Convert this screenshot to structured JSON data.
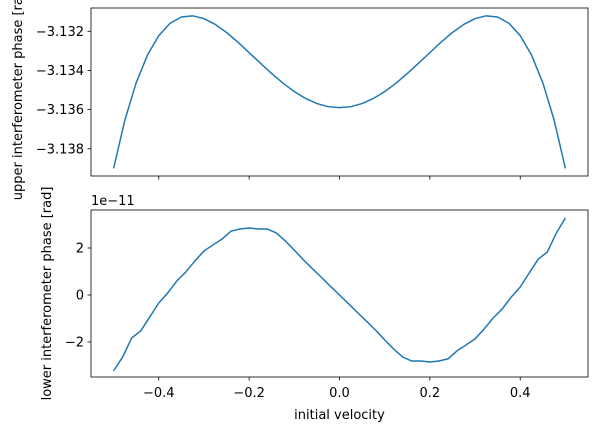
{
  "chart_data": [
    {
      "type": "line",
      "y_label": "upper interferometer phase [rad]",
      "color": "#1f77b4",
      "x": [
        -0.5,
        -0.475,
        -0.45,
        -0.425,
        -0.4,
        -0.375,
        -0.35,
        -0.325,
        -0.3,
        -0.275,
        -0.25,
        -0.225,
        -0.2,
        -0.175,
        -0.15,
        -0.125,
        -0.1,
        -0.075,
        -0.05,
        -0.025,
        0,
        0.025,
        0.05,
        0.075,
        0.1,
        0.125,
        0.15,
        0.175,
        0.2,
        0.225,
        0.25,
        0.275,
        0.3,
        0.325,
        0.35,
        0.375,
        0.4,
        0.425,
        0.45,
        0.475,
        0.5
      ],
      "values": [
        -3.139,
        -3.13653,
        -3.13463,
        -3.13321,
        -3.13222,
        -3.13159,
        -3.13127,
        -3.13121,
        -3.13135,
        -3.13165,
        -3.13206,
        -3.13255,
        -3.13309,
        -3.13363,
        -3.13416,
        -3.13465,
        -3.13508,
        -3.13543,
        -3.13569,
        -3.13585,
        -3.1359,
        -3.13585,
        -3.13569,
        -3.13543,
        -3.13508,
        -3.13465,
        -3.13416,
        -3.13363,
        -3.13309,
        -3.13255,
        -3.13206,
        -3.13165,
        -3.13135,
        -3.13121,
        -3.13127,
        -3.13159,
        -3.13222,
        -3.13321,
        -3.13463,
        -3.13653,
        -3.139
      ],
      "xlim": [
        -0.55,
        0.55
      ],
      "xticks": [
        -0.4,
        -0.2,
        0,
        0.2,
        0.4
      ],
      "ylim": [
        -3.13939,
        -3.13081
      ],
      "yticks": [
        {
          "value": -3.132,
          "label": "−3.132"
        },
        {
          "value": -3.134,
          "label": "−3.134"
        },
        {
          "value": -3.136,
          "label": "−3.136"
        },
        {
          "value": -3.138,
          "label": "−3.138"
        }
      ]
    },
    {
      "type": "line",
      "x_label": "initial velocity",
      "y_label": "lower interferometer phase [rad]",
      "y_offset_label": "1e−11",
      "color": "#1f77b4",
      "x": [
        -0.5,
        -0.48,
        -0.46,
        -0.44,
        -0.42,
        -0.4,
        -0.38,
        -0.36,
        -0.34,
        -0.32,
        -0.3,
        -0.28,
        -0.26,
        -0.24,
        -0.22,
        -0.2,
        -0.18,
        -0.16,
        -0.14,
        -0.12,
        -0.1,
        -0.08,
        -0.06,
        -0.04,
        -0.02,
        0,
        0.02,
        0.04,
        0.06,
        0.08,
        0.1,
        0.12,
        0.14,
        0.16,
        0.18,
        0.2,
        0.22,
        0.24,
        0.26,
        0.28,
        0.3,
        0.32,
        0.34,
        0.36,
        0.38,
        0.4,
        0.42,
        0.44,
        0.46,
        0.48,
        0.5
      ],
      "values": [
        -3.23,
        -2.64,
        -1.83,
        -1.53,
        -0.94,
        -0.34,
        0.09,
        0.6,
        0.98,
        1.45,
        1.87,
        2.13,
        2.38,
        2.72,
        2.81,
        2.85,
        2.81,
        2.81,
        2.64,
        2.3,
        1.91,
        1.5,
        1.12,
        0.75,
        0.37,
        0,
        -0.37,
        -0.75,
        -1.12,
        -1.5,
        -1.91,
        -2.3,
        -2.64,
        -2.81,
        -2.81,
        -2.85,
        -2.81,
        -2.72,
        -2.38,
        -2.13,
        -1.87,
        -1.45,
        -0.98,
        -0.6,
        -0.09,
        0.34,
        0.94,
        1.53,
        1.83,
        2.64,
        3.28
      ],
      "xlim": [
        -0.55,
        0.55
      ],
      "xticks": [
        {
          "value": -0.4,
          "label": "−0.4"
        },
        {
          "value": -0.2,
          "label": "−0.2"
        },
        {
          "value": 0,
          "label": "0.0"
        },
        {
          "value": 0.2,
          "label": "0.2"
        },
        {
          "value": 0.4,
          "label": "0.4"
        }
      ],
      "ylim": [
        -3.49,
        3.617
      ],
      "yticks": [
        2,
        0,
        {
          "value": -2,
          "label": "−2"
        }
      ]
    }
  ]
}
